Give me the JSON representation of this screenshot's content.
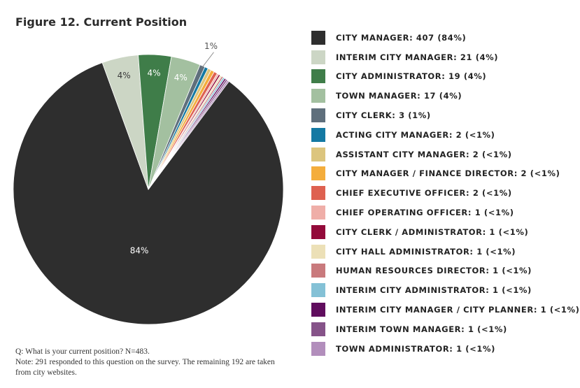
{
  "title": "Figure 12. Current Position",
  "chart_data": {
    "type": "pie",
    "title": "Figure 12. Current Position",
    "slices": [
      {
        "label": "CITY MANAGER: 407 (84%)",
        "value": 407,
        "color": "#2e2e2e",
        "pct_label": "84%",
        "label_style": "light"
      },
      {
        "label": "INTERIM CITY MANAGER: 21 (4%)",
        "value": 21,
        "color": "#ccd6c5",
        "pct_label": "4%",
        "label_style": "dark"
      },
      {
        "label": "CITY ADMINISTRATOR: 19 (4%)",
        "value": 19,
        "color": "#3f7d49",
        "pct_label": "4%",
        "label_style": "light"
      },
      {
        "label": "TOWN MANAGER: 17 (4%)",
        "value": 17,
        "color": "#a3c0a0",
        "pct_label": "4%",
        "label_style": "light"
      },
      {
        "label": "CITY CLERK: 3 (1%)",
        "value": 3,
        "color": "#5f6f7c",
        "pct_label": "1%",
        "label_style": "outside"
      },
      {
        "label": "ACTING CITY MANAGER: 2 (<1%)",
        "value": 2,
        "color": "#1479a3",
        "pct_label": "",
        "label_style": "none"
      },
      {
        "label": "ASSISTANT CITY MANAGER: 2 (<1%)",
        "value": 2,
        "color": "#dcc57e",
        "pct_label": "",
        "label_style": "none"
      },
      {
        "label": "CITY MANAGER / FINANCE DIRECTOR: 2 (<1%)",
        "value": 2,
        "color": "#f4ad3c",
        "pct_label": "",
        "label_style": "none"
      },
      {
        "label": "CHIEF EXECUTIVE OFFICER: 2 (<1%)",
        "value": 2,
        "color": "#de6150",
        "pct_label": "",
        "label_style": "none"
      },
      {
        "label": "CHIEF OPERATING OFFICER: 1 (<1%)",
        "value": 1,
        "color": "#efaea8",
        "pct_label": "",
        "label_style": "none"
      },
      {
        "label": "CITY CLERK / ADMINISTRATOR: 1 (<1%)",
        "value": 1,
        "color": "#930a3a",
        "pct_label": "",
        "label_style": "none"
      },
      {
        "label": "CITY HALL ADMINISTRATOR: 1 (<1%)",
        "value": 1,
        "color": "#ece0b7",
        "pct_label": "",
        "label_style": "none"
      },
      {
        "label": "HUMAN RESOURCES DIRECTOR: 1 (<1%)",
        "value": 1,
        "color": "#c97a7d",
        "pct_label": "",
        "label_style": "none"
      },
      {
        "label": "INTERIM CITY ADMINISTRATOR: 1 (<1%)",
        "value": 1,
        "color": "#84c1d6",
        "pct_label": "",
        "label_style": "none"
      },
      {
        "label": "INTERIM CITY MANAGER / CITY PLANNER: 1 (<1%)",
        "value": 1,
        "color": "#600d5e",
        "pct_label": "",
        "label_style": "none"
      },
      {
        "label": "INTERIM TOWN MANAGER: 1 (<1%)",
        "value": 1,
        "color": "#865389",
        "pct_label": "",
        "label_style": "none"
      },
      {
        "label": "TOWN ADMINISTRATOR: 1 (<1%)",
        "value": 1,
        "color": "#b28ebc",
        "pct_label": "",
        "label_style": "none"
      }
    ],
    "legend_placement": "right"
  },
  "footnote": {
    "question": "Q:  What is your current position? N=483.",
    "note": "Note:  291 responded to this question on the survey. The remaining 192 are taken from city websites."
  }
}
